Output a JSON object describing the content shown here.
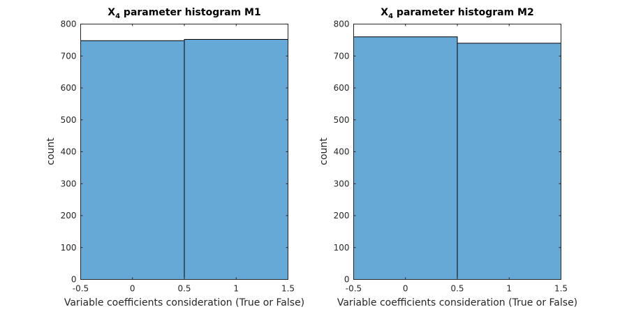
{
  "chart_data": [
    {
      "type": "bar",
      "title": "X",
      "title_subscript": "4",
      "title_suffix": " parameter histogram M1",
      "xlabel": "Variable coefficients consideration (True or False)",
      "ylabel": "count",
      "xlim": [
        -0.5,
        1.5
      ],
      "ylim": [
        0,
        800
      ],
      "xticks": [
        "-0.5",
        "0",
        "0.5",
        "1",
        "1.5"
      ],
      "yticks": [
        "0",
        "100",
        "200",
        "300",
        "400",
        "500",
        "600",
        "700",
        "800"
      ],
      "bins": [
        [
          -0.5,
          0.5
        ],
        [
          0.5,
          1.5
        ]
      ],
      "values": [
        748,
        752
      ],
      "bar_color": "#66a9d7"
    },
    {
      "type": "bar",
      "title": "X",
      "title_subscript": "4",
      "title_suffix": " parameter histogram M2",
      "xlabel": "Variable coefficients consideration (True or False)",
      "ylabel": "count",
      "xlim": [
        -0.5,
        1.5
      ],
      "ylim": [
        0,
        800
      ],
      "xticks": [
        "-0.5",
        "0",
        "0.5",
        "1",
        "1.5"
      ],
      "yticks": [
        "0",
        "100",
        "200",
        "300",
        "400",
        "500",
        "600",
        "700",
        "800"
      ],
      "bins": [
        [
          -0.5,
          0.5
        ],
        [
          0.5,
          1.5
        ]
      ],
      "values": [
        760,
        740
      ],
      "bar_color": "#66a9d7"
    }
  ]
}
